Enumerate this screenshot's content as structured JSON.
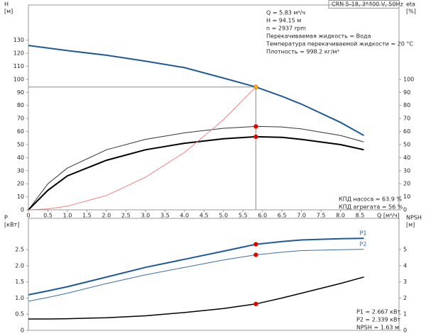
{
  "title": "CRN 5-18, 3*400 V, 50Hz",
  "info": [
    "Q = 5.83 м³/ч",
    "H = 94.15 м",
    "n = 2937 rpm",
    "Перекачиваемая жидкость = Вода",
    "Температура перекачиваемой жидкости = 20 °C",
    "Плотность = 998.2 кг/м³"
  ],
  "chart_data": [
    {
      "type": "line",
      "ylabel": "H",
      "yunit": "[м]",
      "y2label": "eta",
      "y2unit": "[%]",
      "xlabel": "Q [м³/ч]",
      "xlim": [
        0,
        9.5
      ],
      "ylim": [
        0,
        157
      ],
      "y2lim": [
        0,
        157
      ],
      "xticks": [
        0,
        0.5,
        {
          "value": 1,
          "label": "1.0"
        },
        1.5,
        {
          "value": 2,
          "label": "2.0"
        },
        2.5,
        {
          "value": 3,
          "label": "3.0"
        },
        3.5,
        {
          "value": 4,
          "label": "4.0"
        },
        4.5,
        {
          "value": 5,
          "label": "5.0"
        },
        5.5,
        {
          "value": 6,
          "label": "6.0"
        },
        6.5,
        {
          "value": 7,
          "label": "7.0"
        },
        7.5,
        {
          "value": 8,
          "label": "8.0"
        },
        8.5
      ],
      "yticks": [
        0,
        10,
        20,
        30,
        40,
        50,
        60,
        70,
        80,
        90,
        100,
        110,
        120,
        130
      ],
      "y2ticks": [
        0,
        10,
        20,
        30,
        40,
        50,
        60,
        70,
        80,
        90,
        100
      ],
      "duty_x": 5.83,
      "crosshair": true,
      "x": [
        0,
        0.5,
        1,
        2,
        3,
        4,
        5,
        5.83,
        6.5,
        7,
        8,
        8.6
      ],
      "series": [
        {
          "color": "#1f5a96",
          "width": 2,
          "marker": "#f5b400",
          "values": [
            126,
            124,
            122,
            118.5,
            114,
            109,
            101,
            94.15,
            87,
            81,
            67,
            57
          ]
        },
        {
          "color": "#333333",
          "width": 1,
          "marker": "#e00000",
          "axis": "y2",
          "values": [
            0,
            20,
            32,
            46,
            54,
            59,
            62.5,
            63.9,
            63.5,
            62,
            57,
            52
          ]
        },
        {
          "color": "#000000",
          "width": 2,
          "marker": "#e00000",
          "axis": "y2",
          "values": [
            0,
            15,
            26,
            38,
            46,
            51,
            54.5,
            56,
            55.5,
            54,
            50,
            46
          ]
        },
        {
          "color": "#f08080",
          "width": 1,
          "values": [
            0,
            0.7,
            2.8,
            11,
            25,
            44,
            69,
            94.15,
            null,
            null,
            null,
            null
          ]
        }
      ],
      "notes": [
        "КПД насоса = 63.9 %",
        "КПД агрегата = 56 %"
      ]
    },
    {
      "type": "line",
      "ylabel": "P",
      "yunit": "[кВт]",
      "y2label": "NPSH",
      "y2unit": "[м]",
      "xlim": [
        0,
        9.5
      ],
      "ylim": [
        0,
        3.47
      ],
      "y2lim": [
        0,
        6.93
      ],
      "yticks": [
        0,
        0.5,
        {
          "value": 1,
          "label": "1.0"
        },
        1.5,
        {
          "value": 2,
          "label": "2.0"
        },
        2.5
      ],
      "y2ticks": [
        0,
        1,
        2,
        3,
        4,
        5
      ],
      "duty_x": 5.83,
      "x": [
        0,
        0.5,
        1,
        2,
        3,
        4,
        5,
        5.83,
        6.5,
        7,
        8,
        8.6
      ],
      "series": [
        {
          "name": "P1",
          "color": "#1f5a96",
          "width": 2,
          "marker": "#e00000",
          "values": [
            1.1,
            1.22,
            1.35,
            1.65,
            1.95,
            2.2,
            2.45,
            2.667,
            2.75,
            2.8,
            2.84,
            2.85
          ]
        },
        {
          "name": "P2",
          "color": "#3a6ea5",
          "width": 1,
          "marker": "#e00000",
          "values": [
            0.9,
            1.02,
            1.15,
            1.45,
            1.72,
            1.95,
            2.18,
            2.339,
            2.42,
            2.47,
            2.5,
            2.51
          ]
        },
        {
          "color": "#000000",
          "width": 1.5,
          "marker": "#e00000",
          "axis": "y2",
          "values": [
            0.7,
            0.7,
            0.72,
            0.78,
            0.9,
            1.1,
            1.35,
            1.63,
            2,
            2.3,
            2.9,
            3.3
          ]
        }
      ],
      "notes": [
        "P1 = 2.667 кВт",
        "P2 = 2.339 кВт",
        "NPSH = 1.63 м"
      ]
    }
  ]
}
